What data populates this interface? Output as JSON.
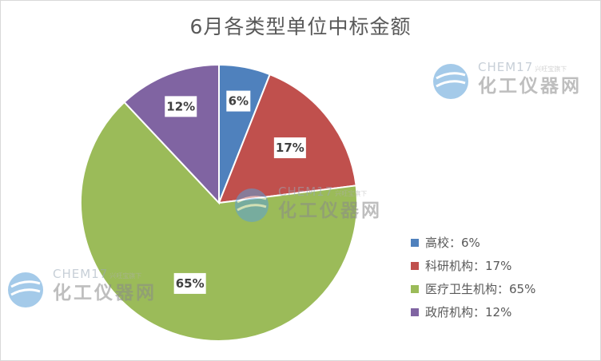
{
  "title": "6月各类型单位中标金额",
  "chart_data": {
    "type": "pie",
    "title": "6月各类型单位中标金额",
    "categories": [
      "高校",
      "科研机构",
      "医疗卫生机构",
      "政府机构"
    ],
    "values": [
      6,
      17,
      65,
      12
    ],
    "labels": [
      "6%",
      "17%",
      "65%",
      "12%"
    ],
    "colors": [
      "#4f81bd",
      "#c0504d",
      "#9bbb59",
      "#8064a2"
    ],
    "legend": {
      "placement": "right",
      "entries": [
        "高校：6%",
        "科研机构：17%",
        "医疗卫生机构：65%",
        "政府机构：12%"
      ]
    }
  },
  "watermark": {
    "brand": "CHEM17",
    "tagline": "兴旺宝旗下",
    "name": "化工仪器网"
  }
}
